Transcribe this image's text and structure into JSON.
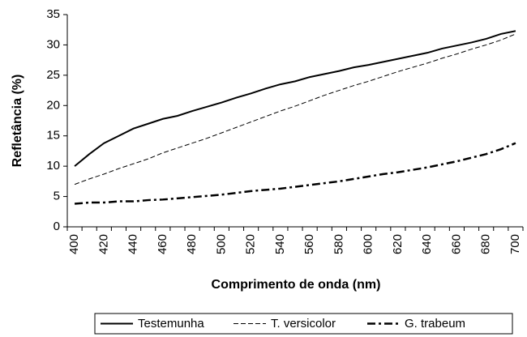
{
  "chart_data": {
    "type": "line",
    "xlabel": "Comprimento de onda (nm)",
    "ylabel": "Refletância (%)",
    "categories": [
      "400",
      null,
      "420",
      null,
      "440",
      null,
      "460",
      null,
      "480",
      null,
      "500",
      null,
      "520",
      null,
      "540",
      null,
      "560",
      null,
      "580",
      null,
      "600",
      null,
      "620",
      null,
      "640",
      null,
      "660",
      null,
      "680",
      null,
      "700"
    ],
    "series": [
      {
        "name": "Testemunha",
        "color": "#000000",
        "style": "solid",
        "values": [
          10,
          12,
          13.8,
          15,
          16.2,
          17,
          17.8,
          18.3,
          19.1,
          19.8,
          20.5,
          21.3,
          22,
          22.8,
          23.5,
          24,
          24.7,
          25.2,
          25.7,
          26.3,
          26.7,
          27.2,
          27.7,
          28.2,
          28.7,
          29.4,
          29.9,
          30.4,
          31,
          31.8,
          32.3
        ]
      },
      {
        "name": "T. versicolor",
        "color": "#000000",
        "style": "dashed",
        "values": [
          7,
          7.9,
          8.7,
          9.6,
          10.4,
          11.2,
          12.2,
          13,
          13.8,
          14.6,
          15.5,
          16.4,
          17.3,
          18.2,
          19.1,
          19.9,
          20.8,
          21.7,
          22.5,
          23.3,
          24,
          24.8,
          25.6,
          26.3,
          27,
          27.8,
          28.5,
          29.3,
          30,
          30.8,
          31.8
        ]
      },
      {
        "name": "G. trabeum",
        "color": "#000000",
        "style": "dashdot",
        "values": [
          3.8,
          4,
          4,
          4.2,
          4.2,
          4.4,
          4.5,
          4.7,
          4.9,
          5.1,
          5.3,
          5.6,
          5.9,
          6.1,
          6.3,
          6.6,
          6.9,
          7.2,
          7.5,
          7.9,
          8.3,
          8.7,
          9,
          9.4,
          9.8,
          10.3,
          10.8,
          11.4,
          12,
          12.8,
          13.8
        ]
      }
    ],
    "ylim": [
      0,
      35
    ],
    "yticks": [
      0,
      5,
      10,
      15,
      20,
      25,
      30,
      35
    ],
    "grid": false,
    "legend": "bottom"
  }
}
